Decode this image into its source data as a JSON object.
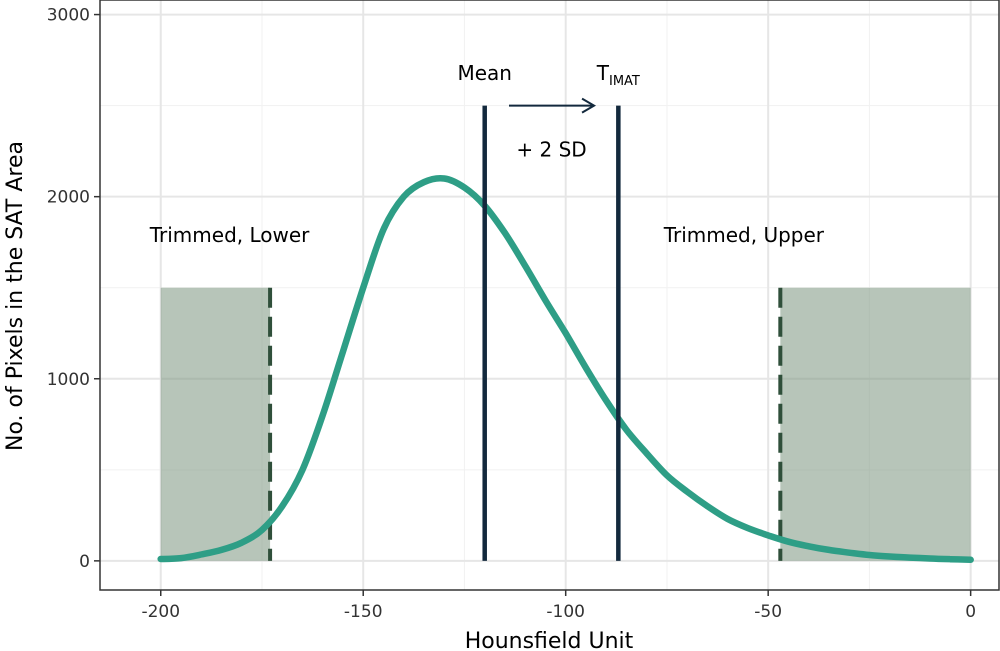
{
  "chart_data": {
    "type": "area",
    "title": "",
    "xlabel": "Hounsfield Unit",
    "ylabel": "No. of Pixels in the SAT Area",
    "xlim": [
      -215,
      7
    ],
    "ylim": [
      -160,
      3080
    ],
    "x_ticks": [
      -200,
      -150,
      -100,
      -50,
      0
    ],
    "x_tick_labels": [
      "-200",
      "-150",
      "-100",
      "-50",
      "0"
    ],
    "y_ticks": [
      0,
      1000,
      2000,
      3000
    ],
    "y_tick_labels": [
      "0",
      "1000",
      "2000",
      "3000"
    ],
    "grid": true,
    "series": [
      {
        "name": "",
        "color": "#2e9e86",
        "x": [
          -200,
          -195,
          -190,
          -185,
          -180,
          -175,
          -170,
          -165,
          -160,
          -155,
          -150,
          -145,
          -140,
          -135,
          -130,
          -125,
          -120,
          -115,
          -110,
          -105,
          -100,
          -95,
          -90,
          -85,
          -80,
          -75,
          -70,
          -65,
          -60,
          -55,
          -50,
          -45,
          -40,
          -35,
          -30,
          -25,
          -20,
          -15,
          -10,
          -5,
          0
        ],
        "y": [
          10,
          15,
          35,
          60,
          100,
          170,
          300,
          500,
          800,
          1150,
          1500,
          1820,
          2000,
          2080,
          2100,
          2050,
          1950,
          1800,
          1620,
          1430,
          1250,
          1060,
          880,
          720,
          590,
          470,
          380,
          300,
          230,
          180,
          140,
          105,
          80,
          60,
          45,
          32,
          24,
          18,
          13,
          9,
          6
        ]
      }
    ],
    "shaded_regions": [
      {
        "label": "Trimmed, Lower",
        "x_start": -200,
        "x_end": -173,
        "y_top": 1500,
        "color": "#7b9680"
      },
      {
        "label": "Trimmed, Upper",
        "x_start": -47,
        "x_end": 0,
        "y_top": 1500,
        "color": "#7b9680"
      }
    ],
    "dashed_lines": [
      {
        "x": -173,
        "y_top": 1500,
        "color": "#2f4f3a"
      },
      {
        "x": -47,
        "y_top": 1500,
        "color": "#2f4f3a"
      }
    ],
    "vertical_lines": [
      {
        "label": "Mean",
        "x": -120,
        "y_top": 2500,
        "color": "#13293d"
      },
      {
        "label": "T",
        "label_sub": "IMAT",
        "x": -87,
        "y_top": 2500,
        "color": "#13293d"
      }
    ],
    "arrow": {
      "label": "+ 2 SD",
      "x_start": -114,
      "x_end": -93,
      "y": 2500,
      "color": "#13293d"
    },
    "annotations": [
      {
        "text": "Trimmed, Lower",
        "x": -183,
        "y": 1750
      },
      {
        "text": "Trimmed, Upper",
        "x": -56,
        "y": 1750
      }
    ]
  }
}
